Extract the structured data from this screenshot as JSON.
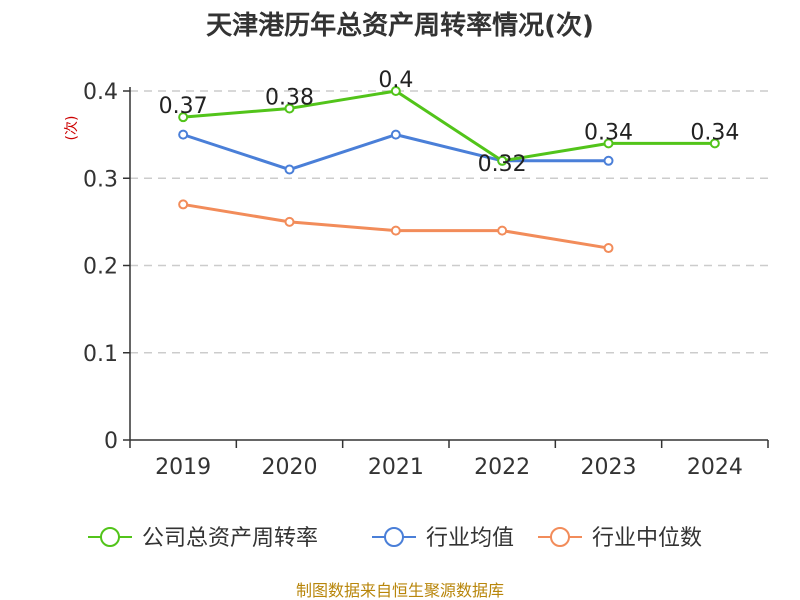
{
  "chart_data": {
    "type": "line",
    "title": "天津港历年总资产周转率情况(次)",
    "ylabel": "(次)",
    "xlabel": "",
    "categories": [
      "2019",
      "2020",
      "2021",
      "2022",
      "2023",
      "2024"
    ],
    "ylim": [
      0,
      0.4
    ],
    "yticks": [
      0,
      0.1,
      0.2,
      0.3,
      0.4
    ],
    "ytick_labels": [
      "0",
      "0.1",
      "0.2",
      "0.3",
      "0.4"
    ],
    "grid": true,
    "legend_position": "bottom",
    "series": [
      {
        "name": "公司总资产周转率",
        "color": "#52c41a",
        "values": [
          0.37,
          0.38,
          0.4,
          0.32,
          0.34,
          0.34
        ],
        "data_labels": [
          "0.37",
          "0.38",
          "0.4",
          "0.32",
          "0.34",
          "0.34"
        ]
      },
      {
        "name": "行业均值",
        "color": "#4a7fd8",
        "values": [
          0.35,
          0.31,
          0.35,
          0.32,
          0.32,
          null
        ]
      },
      {
        "name": "行业中位数",
        "color": "#f28c5a",
        "values": [
          0.27,
          0.25,
          0.24,
          0.24,
          0.22,
          null
        ]
      }
    ],
    "source": "制图数据来自恒生聚源数据库"
  }
}
